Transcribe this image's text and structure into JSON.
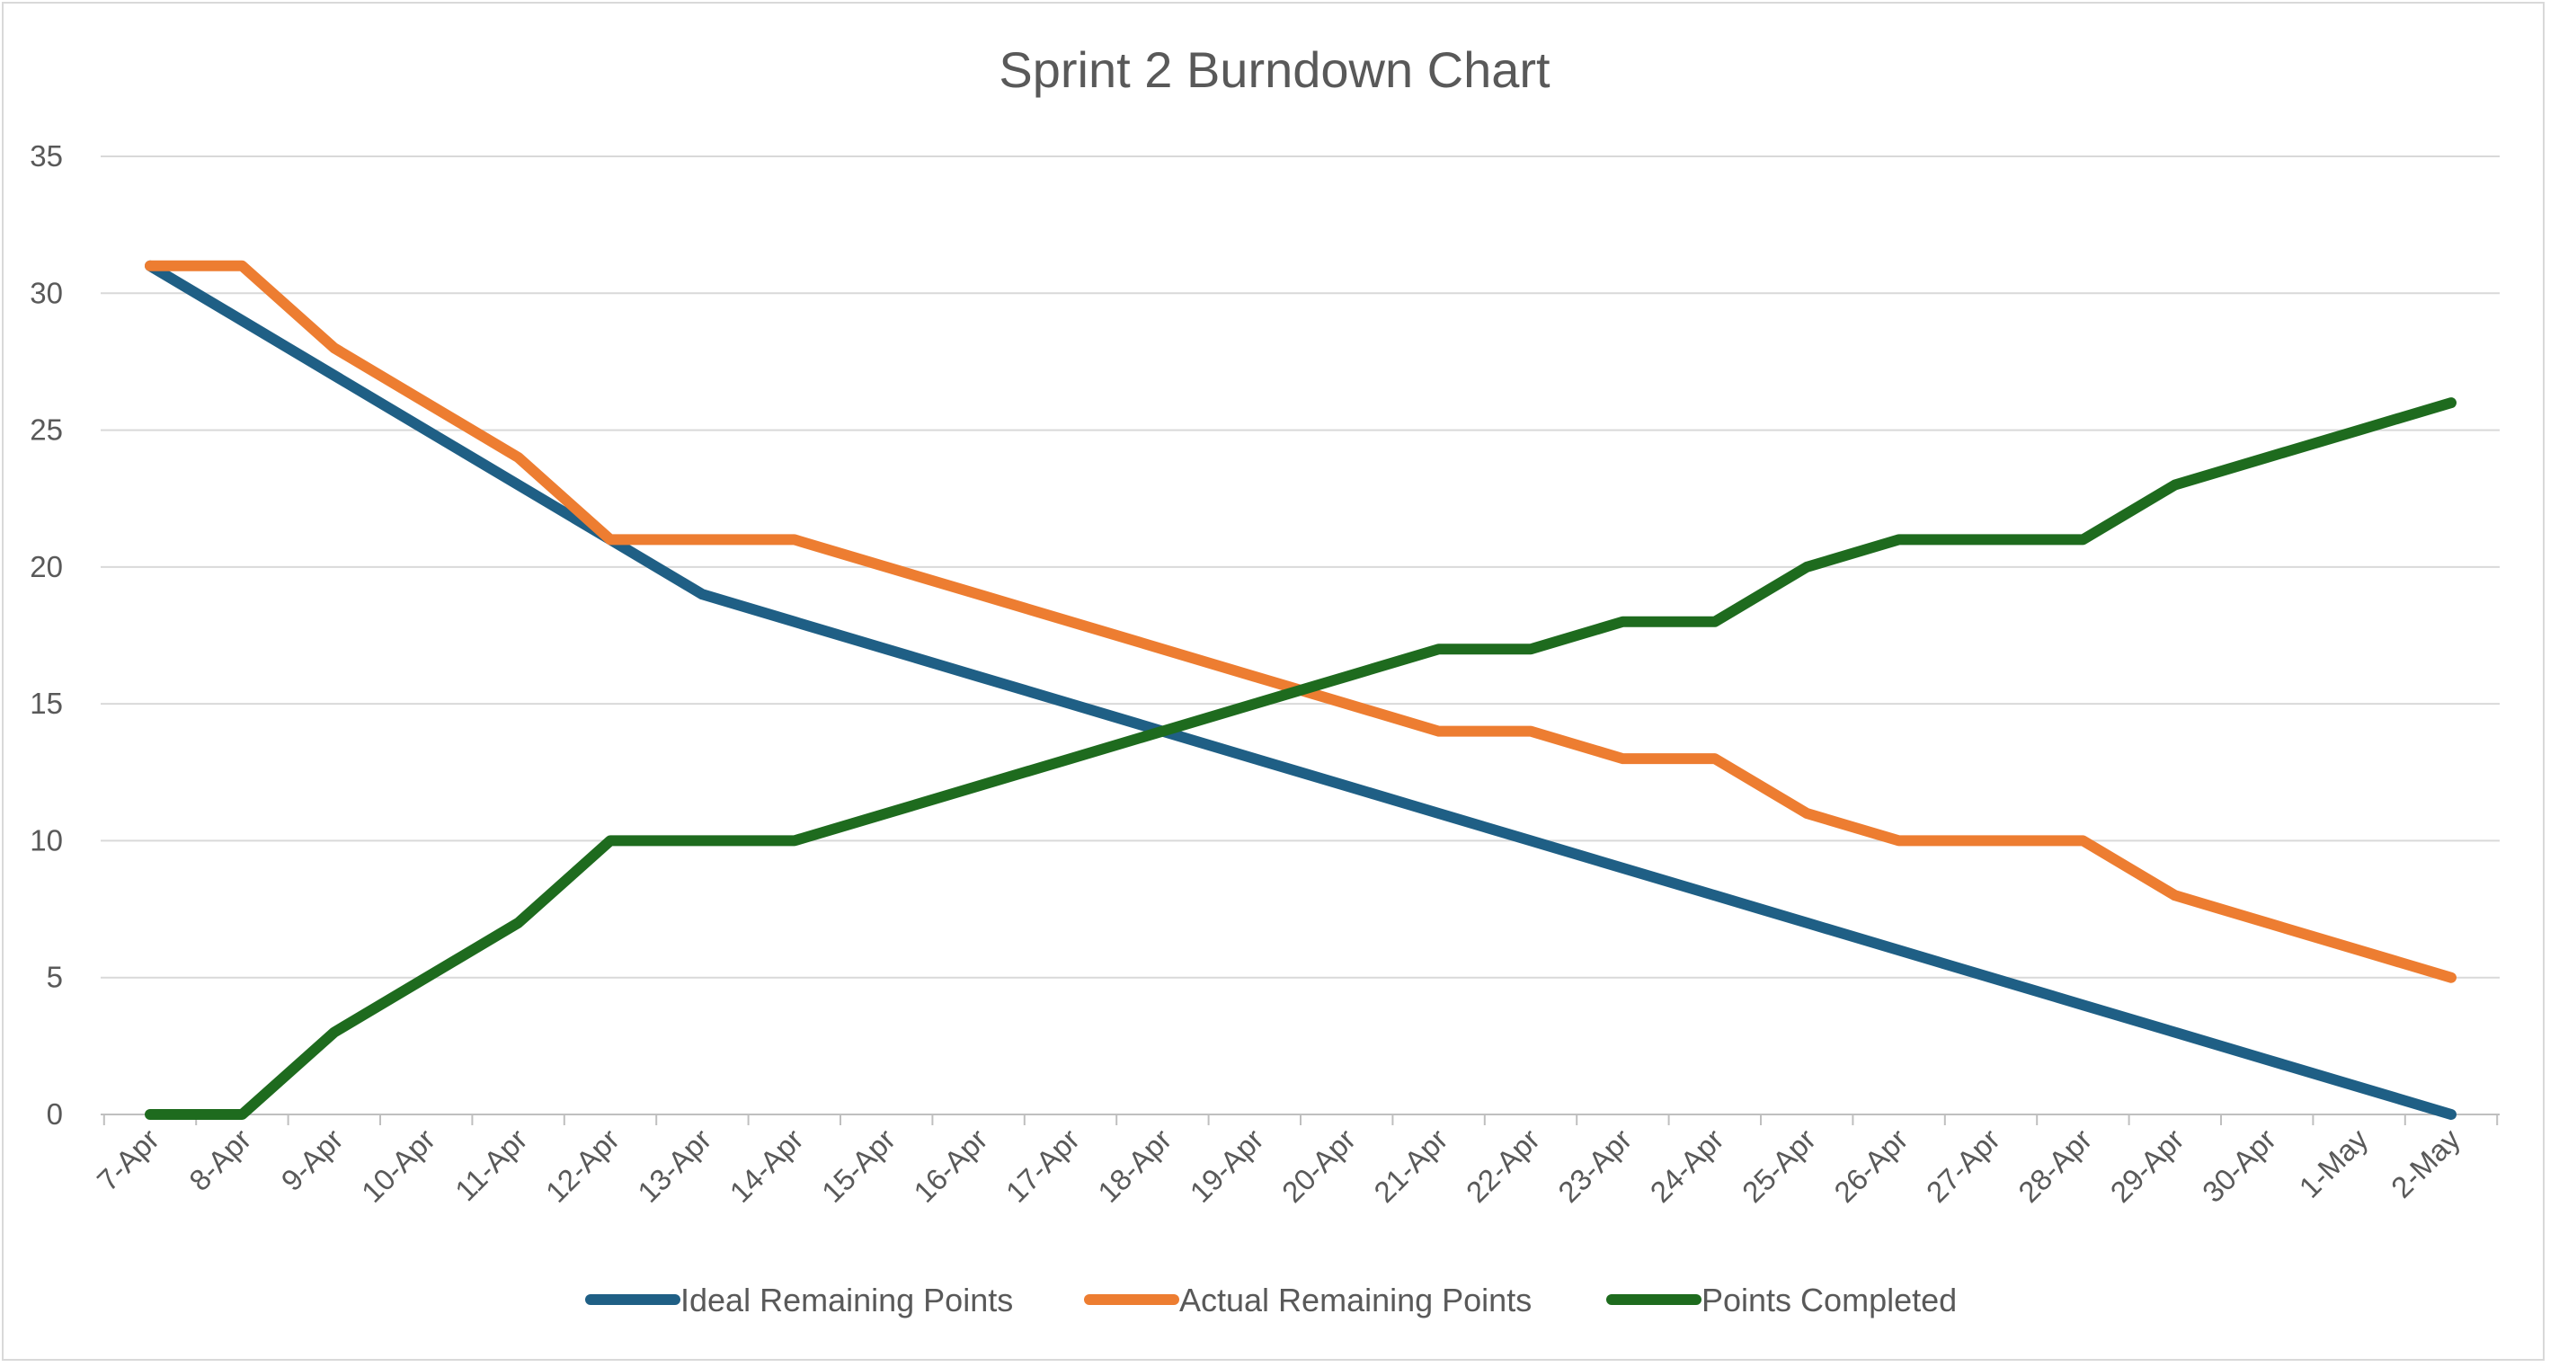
{
  "chart_data": {
    "type": "line",
    "title": "Sprint 2 Burndown Chart",
    "xlabel": "",
    "ylabel": "",
    "categories": [
      "7-Apr",
      "8-Apr",
      "9-Apr",
      "10-Apr",
      "11-Apr",
      "12-Apr",
      "13-Apr",
      "14-Apr",
      "15-Apr",
      "16-Apr",
      "17-Apr",
      "18-Apr",
      "19-Apr",
      "20-Apr",
      "21-Apr",
      "22-Apr",
      "23-Apr",
      "24-Apr",
      "25-Apr",
      "26-Apr",
      "27-Apr",
      "28-Apr",
      "29-Apr",
      "30-Apr",
      "1-May",
      "2-May"
    ],
    "ylim": [
      0,
      35
    ],
    "yticks": [
      0,
      5,
      10,
      15,
      20,
      25,
      30,
      35
    ],
    "grid": true,
    "legend": "bottom",
    "series": [
      {
        "name": "Ideal Remaining Points",
        "color": "#1f5f85",
        "values": [
          31,
          29,
          27,
          25,
          23,
          21,
          19,
          18,
          17,
          16,
          15,
          14,
          13,
          12,
          11,
          10,
          9,
          8,
          7,
          6,
          5,
          4,
          3,
          2,
          1,
          0
        ]
      },
      {
        "name": "Actual Remaining Points",
        "color": "#ed7d31",
        "values": [
          31,
          31,
          28,
          26,
          24,
          21,
          21,
          21,
          20,
          19,
          18,
          17,
          16,
          15,
          14,
          14,
          13,
          13,
          11,
          10,
          10,
          10,
          8,
          7,
          6,
          5
        ]
      },
      {
        "name": "Points Completed",
        "color": "#1e6b1e",
        "values": [
          0,
          0,
          3,
          5,
          7,
          10,
          10,
          10,
          11,
          12,
          13,
          14,
          15,
          16,
          17,
          17,
          18,
          18,
          20,
          21,
          21,
          21,
          23,
          24,
          25,
          26
        ]
      }
    ]
  }
}
